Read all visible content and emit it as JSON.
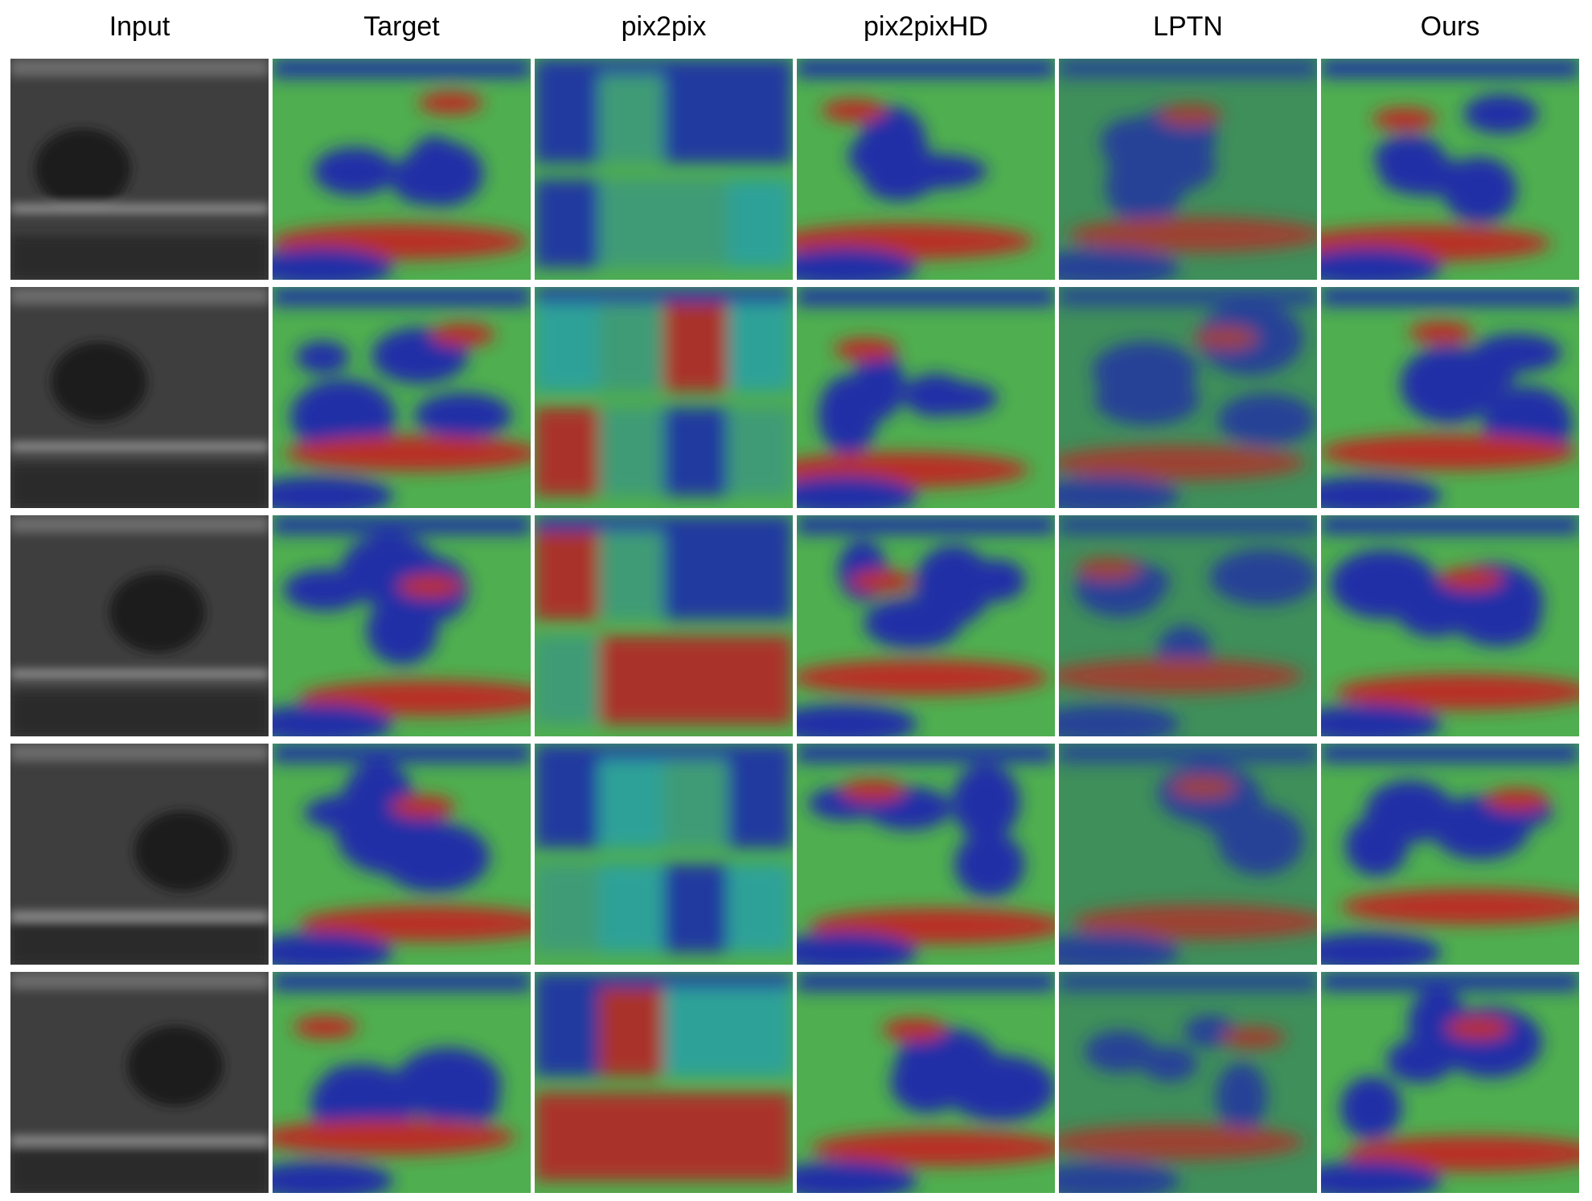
{
  "headers": [
    "Input",
    "Target",
    "pix2pix",
    "pix2pixHD",
    "LPTN",
    "Ours"
  ]
}
